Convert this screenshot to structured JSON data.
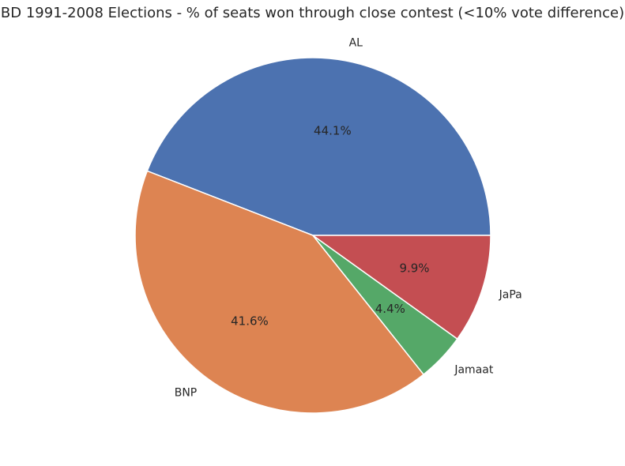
{
  "chart_data": {
    "type": "pie",
    "title": "BD 1991-2008 Elections - % of seats won through close contest (<10% vote difference)",
    "categories": [
      "AL",
      "BNP",
      "Jamaat",
      "JaPa"
    ],
    "values": [
      44.1,
      41.6,
      4.4,
      9.9
    ],
    "labels": [
      "44.1%",
      "41.6%",
      "4.4%",
      "9.9%"
    ],
    "colors": [
      "#4c72b0",
      "#dd8452",
      "#55a868",
      "#c44e52"
    ],
    "start_angle_deg": 0,
    "direction": "counterclockwise",
    "legend": "none"
  }
}
